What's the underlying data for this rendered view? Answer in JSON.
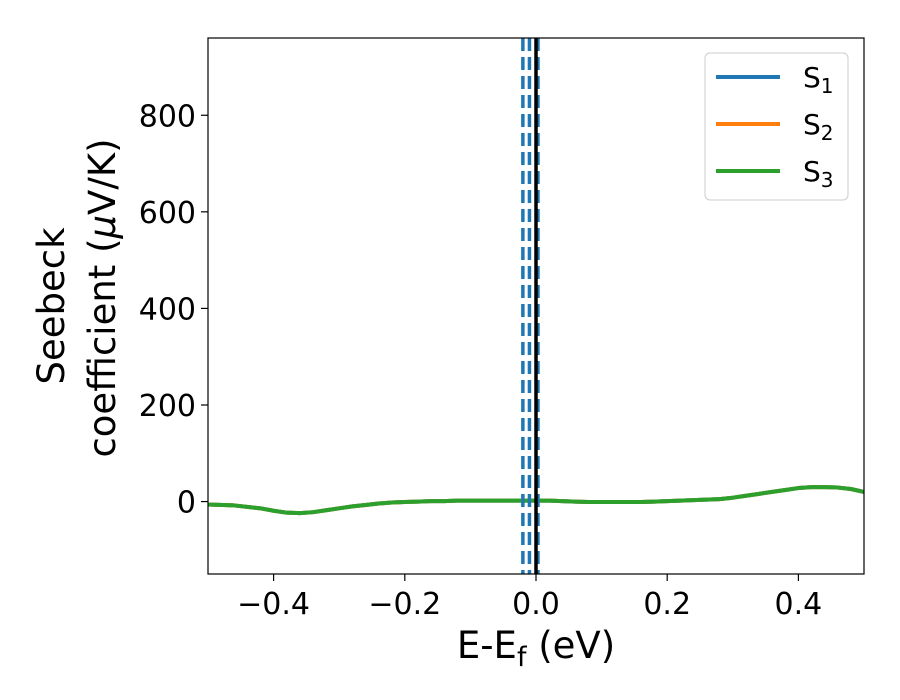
{
  "chart_data": {
    "type": "line",
    "xlabel": {
      "main": "E-E",
      "sub": "f",
      "unit": " (eV)"
    },
    "ylabel": {
      "line1": "Seebeck",
      "line2_text": "coefficient  (",
      "line2_mu": "μ",
      "line2_end": "V/K)"
    },
    "xlim": [
      -0.5,
      0.5
    ],
    "ylim": [
      -150,
      960
    ],
    "x_ticks": [
      -0.4,
      -0.2,
      0.0,
      0.2,
      0.4
    ],
    "x_tick_labels": [
      "−0.4",
      "−0.2",
      "0.0",
      "0.2",
      "0.4"
    ],
    "y_ticks": [
      0,
      200,
      400,
      600,
      800
    ],
    "y_tick_labels": [
      "0",
      "200",
      "400",
      "600",
      "800"
    ],
    "grid": false,
    "legend_placement": "top-right",
    "series": [
      {
        "name": "S",
        "sub": "1",
        "color": "#1f77b4"
      },
      {
        "name": "S",
        "sub": "2",
        "color": "#ff7f0e"
      },
      {
        "name": "S",
        "sub": "3",
        "color": "#2ca02c"
      }
    ],
    "curve": {
      "x": [
        -0.5,
        -0.46,
        -0.42,
        -0.4,
        -0.38,
        -0.36,
        -0.34,
        -0.32,
        -0.3,
        -0.28,
        -0.26,
        -0.24,
        -0.22,
        -0.2,
        -0.18,
        -0.16,
        -0.14,
        -0.12,
        -0.1,
        -0.08,
        -0.06,
        -0.04,
        -0.02,
        0.0,
        0.02,
        0.04,
        0.06,
        0.08,
        0.1,
        0.12,
        0.14,
        0.16,
        0.18,
        0.2,
        0.22,
        0.24,
        0.26,
        0.28,
        0.3,
        0.32,
        0.34,
        0.36,
        0.38,
        0.4,
        0.42,
        0.44,
        0.46,
        0.48,
        0.5
      ],
      "y": [
        -6,
        -8,
        -14,
        -19,
        -23,
        -24,
        -22,
        -18,
        -14,
        -10,
        -7,
        -4,
        -2,
        -1,
        0,
        1,
        1,
        2,
        2,
        2,
        2,
        2,
        2,
        2,
        2,
        1,
        0,
        -1,
        -1,
        -1,
        -1,
        -1,
        0,
        1,
        2,
        3,
        4,
        5,
        8,
        12,
        16,
        20,
        24,
        28,
        30,
        30,
        29,
        26,
        20
      ]
    },
    "vertical_lines": [
      {
        "x": -0.02,
        "style": "dashed",
        "color": "#1f77b4"
      },
      {
        "x": -0.01,
        "style": "dashed",
        "color": "#1f77b4"
      },
      {
        "x": 0.003,
        "style": "dashed",
        "color": "#1f77b4"
      },
      {
        "x": 0.0,
        "style": "solid",
        "color": "#000000"
      }
    ]
  }
}
